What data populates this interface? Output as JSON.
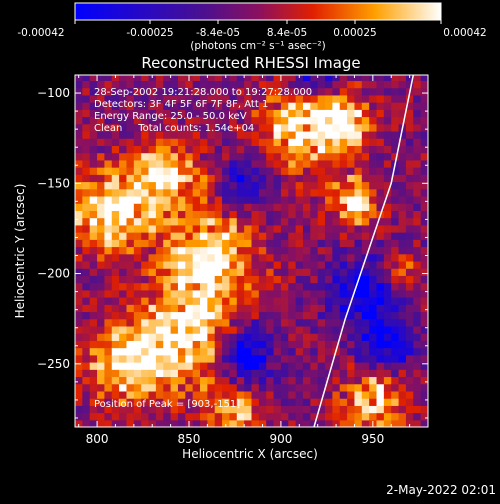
{
  "colorbar": {
    "tick_labels": [
      "-0.00042",
      "-0.00025",
      "-8.4e-05",
      "8.4e-05",
      "0.00025",
      "0.00042"
    ],
    "units_label": "(photons cm⁻² s⁻¹ asec⁻²)",
    "range": [
      -0.00042,
      0.00042
    ],
    "colormap": "blue-purple-red-yellow-white"
  },
  "plot": {
    "title": "Reconstructed RHESSI Image",
    "xlabel": "Heliocentric X (arcsec)",
    "ylabel": "Heliocentric Y (arcsec)",
    "annotations": {
      "time_range": "28-Sep-2002 19:21:28.000 to 19:27:28.000",
      "detectors": "Detectors: 3F 4F 5F 6F 7F 8F, Att 1",
      "energy": "Energy Range: 25.0 - 50.0 keV",
      "clean": "Clean     Total counts: 1.54e+04",
      "peak": "Position of Peak = [903,-151]"
    }
  },
  "footer": {
    "timestamp": "2-May-2022 02:01"
  },
  "chart_data": {
    "type": "heatmap",
    "title": "Reconstructed RHESSI Image",
    "xlabel": "Heliocentric X (arcsec)",
    "ylabel": "Heliocentric Y (arcsec)",
    "xlim": [
      788,
      980
    ],
    "ylim": [
      -285,
      -90
    ],
    "x_ticks": [
      800,
      850,
      900,
      950
    ],
    "y_ticks": [
      -100,
      -150,
      -200,
      -250
    ],
    "x_tick_labels": [
      "800",
      "850",
      "900",
      "950"
    ],
    "y_tick_labels": [
      "−100",
      "−150",
      "−200",
      "−250"
    ],
    "grid": false,
    "peak_position": [
      903,
      -151
    ],
    "limb_curve": {
      "x": [
        918,
        935,
        960,
        972
      ],
      "y": [
        -285,
        -225,
        -150,
        -90
      ]
    },
    "hot_regions": [
      {
        "x": 808,
        "y": -165,
        "r": 22,
        "level": 0.95
      },
      {
        "x": 838,
        "y": -145,
        "r": 18,
        "level": 0.9
      },
      {
        "x": 862,
        "y": -190,
        "r": 25,
        "level": 0.92
      },
      {
        "x": 848,
        "y": -235,
        "r": 28,
        "level": 0.95
      },
      {
        "x": 815,
        "y": -250,
        "r": 20,
        "level": 0.85
      },
      {
        "x": 912,
        "y": -120,
        "r": 22,
        "level": 0.9
      },
      {
        "x": 935,
        "y": -115,
        "r": 15,
        "level": 0.8
      },
      {
        "x": 940,
        "y": -160,
        "r": 14,
        "level": 0.75
      },
      {
        "x": 950,
        "y": -270,
        "r": 16,
        "level": 0.85
      },
      {
        "x": 875,
        "y": -275,
        "r": 14,
        "level": 0.7
      },
      {
        "x": 965,
        "y": -200,
        "r": 10,
        "level": 0.6
      }
    ],
    "cold_regions": [
      {
        "x": 880,
        "y": -245,
        "r": 16,
        "level": 0.9
      },
      {
        "x": 945,
        "y": -210,
        "r": 18,
        "level": 0.85
      },
      {
        "x": 958,
        "y": -240,
        "r": 14,
        "level": 0.8
      },
      {
        "x": 920,
        "y": -90,
        "r": 12,
        "level": 0.6
      },
      {
        "x": 880,
        "y": -150,
        "r": 14,
        "level": 0.6
      }
    ]
  }
}
